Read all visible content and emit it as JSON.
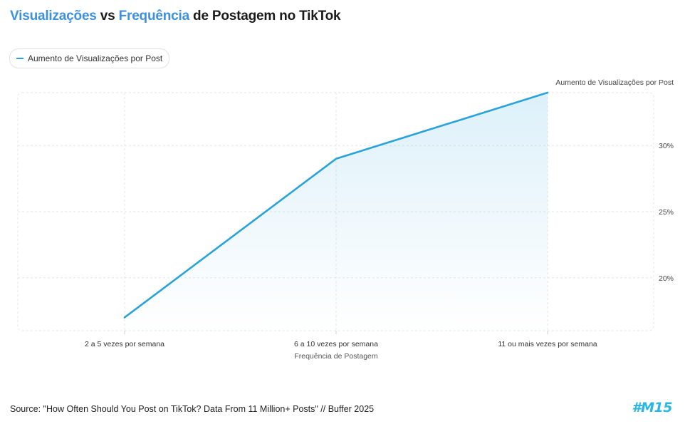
{
  "title": {
    "part1": "Visualizações",
    "part2": " vs ",
    "part3": "Frequência",
    "part4": " de Postagem no TikTok"
  },
  "legend": {
    "label": "Aumento de Visualizações por Post"
  },
  "source": "Source: \"How Often Should You Post on TikTok? Data From 11 Million+ Posts\" // Buffer 2025",
  "logo": "#M15",
  "colors": {
    "line": "#2aa3dd",
    "accent": "#3d8fe0",
    "grid": "#e6e6e6"
  },
  "chart_data": {
    "type": "area",
    "categories": [
      "2 a 5 vezes por semana",
      "6 a 10 vezes por semana",
      "11 ou mais vezes por semana"
    ],
    "series": [
      {
        "name": "Aumento de Visualizações por Post",
        "values": [
          17,
          29,
          34
        ]
      }
    ],
    "xlabel": "Frequência de Postagem",
    "ylabel": "Aumento de Visualizações por Post",
    "yticks": [
      20,
      25,
      30
    ],
    "ytick_labels": [
      "20%",
      "25%",
      "30%"
    ],
    "ylim": [
      16,
      34
    ],
    "y_axis_side": "right",
    "grid": true,
    "legend_position": "top-left"
  }
}
